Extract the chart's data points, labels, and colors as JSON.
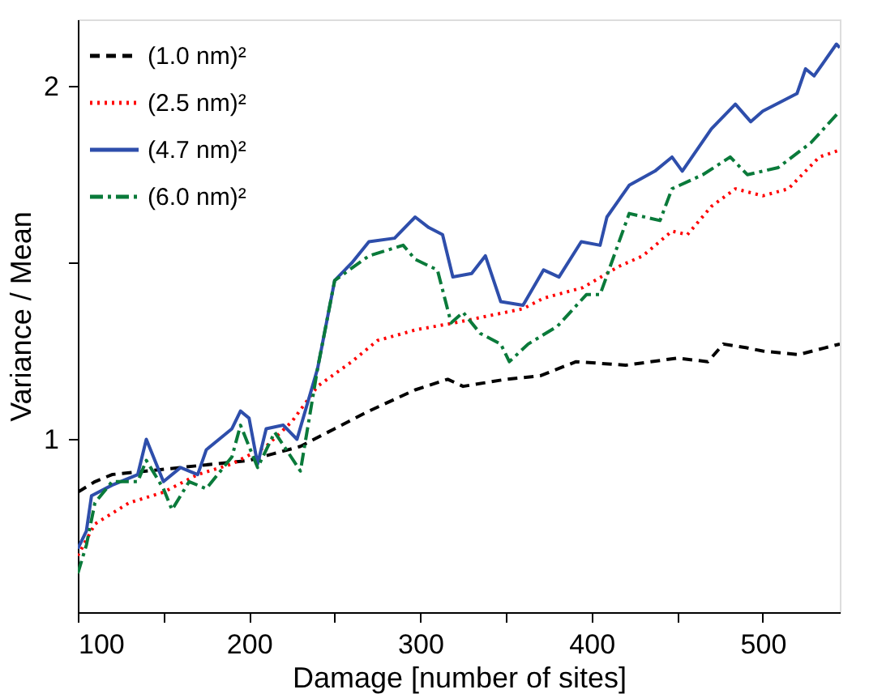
{
  "chart_data": {
    "type": "line",
    "xlabel": "Damage [number of sites]",
    "ylabel": "Variance / Mean",
    "xlim": [
      100,
      545
    ],
    "ylim": [
      0.51,
      2.19
    ],
    "xticks": [
      100,
      {
        "value": 150,
        "label": null
      },
      200,
      {
        "value": 250,
        "label": null
      },
      300,
      {
        "value": 350,
        "label": null
      },
      400,
      {
        "value": 450,
        "label": null
      },
      500
    ],
    "yticks": [
      1,
      {
        "value": 1.5,
        "label": null
      },
      2
    ],
    "legend": "top left",
    "grid": false,
    "series": [
      {
        "name": "(1.0 nm)²",
        "color": "#000000",
        "line_style": "dashed",
        "x": [
          100,
          110,
          120,
          140,
          160,
          180,
          200,
          215,
          230,
          250,
          270,
          297,
          316,
          325,
          350,
          370,
          391,
          420,
          450,
          468,
          477,
          490,
          500,
          521,
          545
        ],
        "values": [
          0.85,
          0.88,
          0.9,
          0.91,
          0.92,
          0.93,
          0.94,
          0.96,
          0.98,
          1.03,
          1.08,
          1.14,
          1.17,
          1.15,
          1.17,
          1.18,
          1.22,
          1.21,
          1.23,
          1.22,
          1.27,
          1.26,
          1.25,
          1.24,
          1.27
        ]
      },
      {
        "name": "(2.5 nm)²",
        "color": "#ff0000",
        "line_style": "dotted",
        "x": [
          100,
          110,
          130,
          150,
          170,
          190,
          210,
          225,
          240,
          260,
          275,
          290,
          297,
          320,
          340,
          360,
          372,
          395,
          416,
          430,
          447,
          456,
          470,
          484,
          500,
          515,
          533,
          545
        ],
        "values": [
          0.67,
          0.76,
          0.82,
          0.85,
          0.9,
          0.93,
          0.98,
          1.05,
          1.15,
          1.22,
          1.28,
          1.3,
          1.31,
          1.33,
          1.35,
          1.37,
          1.4,
          1.43,
          1.49,
          1.52,
          1.59,
          1.58,
          1.66,
          1.71,
          1.69,
          1.71,
          1.8,
          1.82
        ]
      },
      {
        "name": "(4.7 nm)²",
        "color": "#2e4eab",
        "line_style": "solid",
        "x": [
          100,
          105,
          108,
          120,
          135,
          140,
          150,
          160,
          170,
          175,
          190,
          195,
          200,
          205,
          210,
          220,
          228,
          240,
          250,
          260,
          270,
          285,
          297,
          305,
          313,
          319,
          330,
          338,
          347,
          360,
          372,
          381,
          394,
          405,
          409,
          422,
          437,
          447,
          453,
          470,
          484,
          493,
          500,
          520,
          525,
          530,
          543,
          545
        ],
        "values": [
          0.69,
          0.74,
          0.84,
          0.87,
          0.9,
          1.0,
          0.88,
          0.92,
          0.9,
          0.97,
          1.03,
          1.08,
          1.06,
          0.93,
          1.03,
          1.04,
          1.0,
          1.2,
          1.45,
          1.5,
          1.56,
          1.57,
          1.63,
          1.6,
          1.58,
          1.46,
          1.47,
          1.52,
          1.39,
          1.38,
          1.48,
          1.46,
          1.56,
          1.55,
          1.63,
          1.72,
          1.76,
          1.8,
          1.76,
          1.88,
          1.95,
          1.9,
          1.93,
          1.98,
          2.05,
          2.03,
          2.12,
          2.11
        ]
      },
      {
        "name": "(6.0 nm)²",
        "color": "#0a7a3a",
        "line_style": "dashdot",
        "x": [
          100,
          105,
          110,
          120,
          135,
          140,
          150,
          155,
          165,
          175,
          190,
          195,
          205,
          215,
          230,
          240,
          250,
          270,
          290,
          297,
          310,
          318,
          325,
          335,
          347,
          352,
          363,
          380,
          397,
          405,
          422,
          440,
          447,
          465,
          481,
          491,
          509,
          528,
          545
        ],
        "values": [
          0.62,
          0.7,
          0.82,
          0.88,
          0.88,
          0.94,
          0.86,
          0.8,
          0.88,
          0.86,
          0.95,
          1.04,
          0.92,
          1.02,
          0.91,
          1.2,
          1.45,
          1.52,
          1.55,
          1.51,
          1.48,
          1.33,
          1.36,
          1.3,
          1.27,
          1.22,
          1.27,
          1.32,
          1.41,
          1.41,
          1.64,
          1.62,
          1.71,
          1.75,
          1.8,
          1.75,
          1.77,
          1.84,
          1.93
        ]
      }
    ]
  }
}
